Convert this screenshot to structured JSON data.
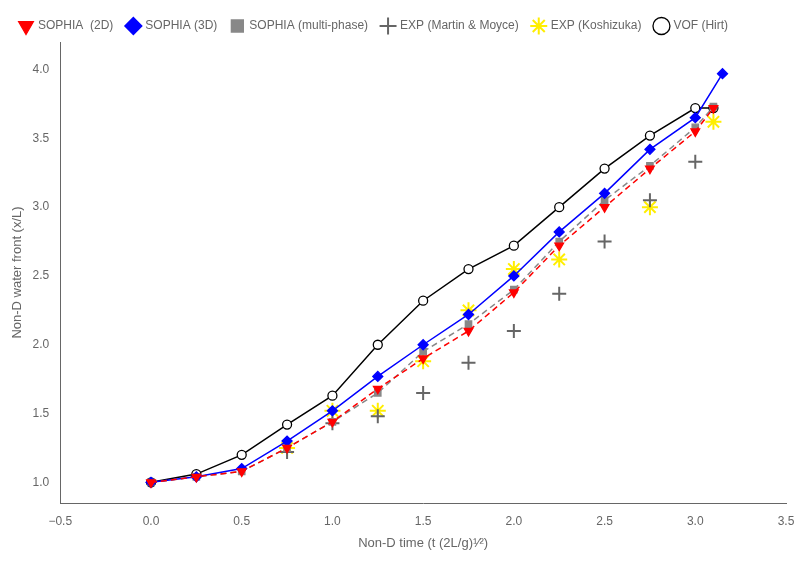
{
  "chart_data": {
    "type": "line",
    "xlabel": "Non-D time (t (2L/g)¹⁄²)",
    "ylabel": "Non-D water front (x/L)",
    "xlim": [
      -0.5,
      3.5
    ],
    "ylim": [
      0.85,
      4.2
    ],
    "xticks": [
      {
        "value": -0.5,
        "label": "−0.5"
      },
      {
        "value": 0.0,
        "label": "0.0"
      },
      0.5,
      {
        "value": 1.0,
        "label": "1.0"
      },
      1.5,
      {
        "value": 2.0,
        "label": "2.0"
      },
      2.5,
      {
        "value": 3.0,
        "label": "3.0"
      },
      3.5
    ],
    "yticks": [
      {
        "value": 1.0,
        "label": "1.0"
      },
      1.5,
      {
        "value": 2.0,
        "label": "2.0"
      },
      2.5,
      {
        "value": 3.0,
        "label": "3.0"
      },
      3.5,
      {
        "value": 4.0,
        "label": "4.0"
      }
    ],
    "grid": false,
    "legend": "upper left",
    "series": [
      {
        "name": "SOPHIA  (2D)",
        "color": "#ff0000",
        "marker": "triangle_down",
        "line_style": "dashed",
        "x": [
          0.0,
          0.25,
          0.5,
          0.75,
          1.0,
          1.25,
          1.5,
          1.75,
          2.0,
          2.25,
          2.5,
          2.75,
          3.0,
          3.1
        ],
        "values": [
          1.0,
          1.04,
          1.08,
          1.25,
          1.44,
          1.68,
          1.9,
          2.1,
          2.38,
          2.72,
          3.0,
          3.28,
          3.55,
          3.72
        ]
      },
      {
        "name": "SOPHIA (3D)",
        "color": "#0000ff",
        "marker": "diamond",
        "line_style": "solid",
        "x": [
          0.0,
          0.25,
          0.5,
          0.75,
          1.0,
          1.25,
          1.5,
          1.75,
          2.0,
          2.25,
          2.5,
          2.75,
          3.0,
          3.15
        ],
        "values": [
          1.0,
          1.04,
          1.1,
          1.3,
          1.52,
          1.77,
          2.0,
          2.22,
          2.5,
          2.82,
          3.1,
          3.42,
          3.65,
          3.97
        ]
      },
      {
        "name": "SOPHIA (multi-phase)",
        "color": "#888888",
        "marker": "square",
        "line_style": "dashed",
        "x": [
          0.0,
          0.25,
          0.5,
          0.75,
          1.0,
          1.25,
          1.5,
          1.75,
          2.0,
          2.25,
          2.5,
          2.75,
          3.0,
          3.1
        ],
        "values": [
          1.0,
          1.04,
          1.08,
          1.25,
          1.44,
          1.65,
          1.95,
          2.15,
          2.4,
          2.75,
          3.05,
          3.3,
          3.58,
          3.73
        ]
      },
      {
        "name": "EXP (Martin & Moyce)",
        "color": "#666666",
        "marker": "plus",
        "line_style": "none",
        "x": [
          0.75,
          1.0,
          1.25,
          1.5,
          1.75,
          2.0,
          2.25,
          2.5,
          2.75,
          3.0
        ],
        "values": [
          1.22,
          1.43,
          1.48,
          1.65,
          1.87,
          2.1,
          2.37,
          2.75,
          3.05,
          3.33
        ]
      },
      {
        "name": "EXP (Koshizuka)",
        "color": "#ffee00",
        "marker": "star",
        "line_style": "none",
        "x": [
          0.75,
          1.0,
          1.25,
          1.5,
          1.75,
          2.0,
          2.25,
          2.75,
          3.1
        ],
        "values": [
          1.25,
          1.52,
          1.52,
          1.88,
          2.25,
          2.55,
          2.62,
          3.0,
          3.62
        ]
      },
      {
        "name": "VOF (Hirt)",
        "color": "#000000",
        "marker": "open_circle",
        "line_style": "solid",
        "x": [
          0.0,
          0.25,
          0.5,
          0.75,
          1.0,
          1.25,
          1.5,
          1.75,
          2.0,
          2.25,
          2.5,
          2.75,
          3.0,
          3.1
        ],
        "values": [
          1.0,
          1.06,
          1.2,
          1.42,
          1.63,
          2.0,
          2.32,
          2.55,
          2.72,
          3.0,
          3.28,
          3.52,
          3.72,
          3.72
        ]
      }
    ]
  }
}
